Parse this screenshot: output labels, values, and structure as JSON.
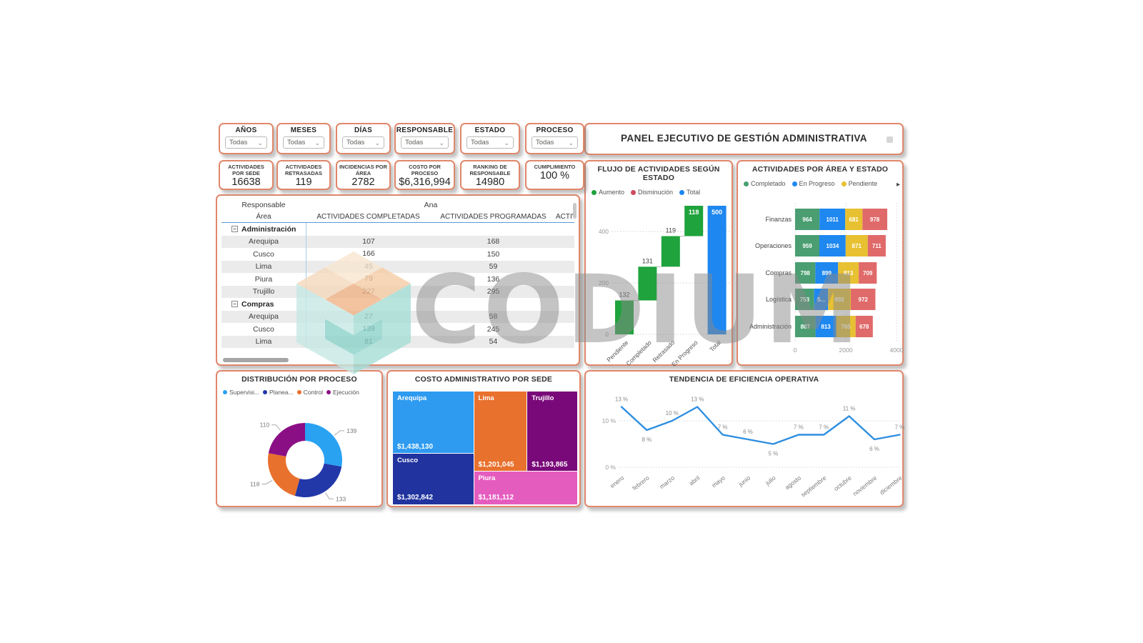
{
  "header": {
    "title": "PANEL EJECUTIVO DE GESTIÓN ADMINISTRATIVA"
  },
  "watermark": {
    "text": "CODIUM"
  },
  "slicers": [
    {
      "label": "AÑOS",
      "value": "Todas"
    },
    {
      "label": "MESES",
      "value": "Todas"
    },
    {
      "label": "DÍAS",
      "value": "Todas"
    },
    {
      "label": "RESPONSABLE",
      "value": "Todas"
    },
    {
      "label": "ESTADO",
      "value": "Todas"
    },
    {
      "label": "PROCESO",
      "value": "Todas"
    }
  ],
  "kpis": [
    {
      "label": "ACTIVIDADES POR SEDE",
      "value": "16638"
    },
    {
      "label": "ACTIVIDADES RETRASADAS",
      "value": "119"
    },
    {
      "label": "INCIDENCIAS POR ÁREA",
      "value": "2782"
    },
    {
      "label": "COSTO POR PROCESO",
      "value": "$6,316,994"
    },
    {
      "label": "RANKING DE RESPONSABLE",
      "value": "14980"
    },
    {
      "label": "CUMPLIMIENTO",
      "value": "100 %"
    }
  ],
  "matrix": {
    "row_header": "Responsable",
    "group_header": "Ana",
    "area_header": "Área",
    "columns": [
      "ACTIVIDADES COMPLETADAS",
      "ACTIVIDADES PROGRAMADAS",
      "ACTIV"
    ],
    "groups": [
      {
        "name": "Administración",
        "rows": [
          {
            "area": "Arequipa",
            "completadas": "107",
            "programadas": "168"
          },
          {
            "area": "Cusco",
            "completadas": "166",
            "programadas": "150"
          },
          {
            "area": "Lima",
            "completadas": "45",
            "programadas": "59"
          },
          {
            "area": "Piura",
            "completadas": "79",
            "programadas": "136"
          },
          {
            "area": "Trujillo",
            "completadas": "227",
            "programadas": "295"
          }
        ]
      },
      {
        "name": "Compras",
        "rows": [
          {
            "area": "Arequipa",
            "completadas": "27",
            "programadas": "58"
          },
          {
            "area": "Cusco",
            "completadas": "139",
            "programadas": "245"
          },
          {
            "area": "Lima",
            "completadas": "81",
            "programadas": "54"
          }
        ]
      }
    ]
  },
  "chart_data": [
    {
      "type": "waterfall",
      "title": "FLUJO DE ACTIVIDADES SEGÚN ESTADO",
      "legend": [
        {
          "label": "Aumento",
          "color": "#1FA33C"
        },
        {
          "label": "Disminución",
          "color": "#D04A5E"
        },
        {
          "label": "Total",
          "color": "#1E87F0"
        }
      ],
      "categories": [
        "Pendiente",
        "Completado",
        "Retrasado",
        "En Progreso",
        "Total"
      ],
      "values": [
        132,
        131,
        119,
        118,
        500
      ],
      "label_inside": [
        false,
        false,
        false,
        true,
        true
      ],
      "ylim": [
        0,
        500
      ],
      "yticks": [
        0,
        200,
        400
      ],
      "grid": "dotted"
    },
    {
      "type": "bar-stacked-h",
      "title": "ACTIVIDADES POR ÁREA Y ESTADO",
      "legend": [
        {
          "label": "Completado",
          "color": "#4A9E71"
        },
        {
          "label": "En Progreso",
          "color": "#1E87F0"
        },
        {
          "label": "Pendiente",
          "color": "#E7C131"
        }
      ],
      "legend_overflow": true,
      "categories": [
        "Finanzas",
        "Operaciones",
        "Compras",
        "Logística",
        "Administración"
      ],
      "series": [
        {
          "name": "Completado",
          "color": "#4A9E71",
          "values": [
            964,
            959,
            798,
            753,
            807
          ],
          "labels": [
            "964",
            "959",
            "798",
            "753",
            "807"
          ]
        },
        {
          "name": "En Progreso",
          "color": "#1E87F0",
          "values": [
            1011,
            1034,
            899,
            550,
            813
          ],
          "labels": [
            "1011",
            "1034",
            "899",
            "5...",
            "813"
          ]
        },
        {
          "name": "Pendiente",
          "color": "#E7C131",
          "values": [
            681,
            871,
            813,
            892,
            765
          ],
          "labels": [
            "681",
            "871",
            "813",
            "892",
            "765"
          ]
        },
        {
          "name": "",
          "color": "#E06A6A",
          "values": [
            978,
            711,
            709,
            972,
            678
          ],
          "labels": [
            "978",
            "711",
            "709",
            "972",
            "678"
          ]
        }
      ],
      "xlim": [
        0,
        4000
      ],
      "xticks": [
        0,
        2000,
        4000
      ]
    },
    {
      "type": "pie",
      "title": "DISTRIBUCIÓN POR PROCESO",
      "donut": true,
      "legend": [
        {
          "label": "Supervisi...",
          "color": "#29A2F2"
        },
        {
          "label": "Planea...",
          "color": "#2238A8"
        },
        {
          "label": "Control",
          "color": "#E8712D"
        },
        {
          "label": "Ejecución",
          "color": "#8A0F85"
        }
      ],
      "values": [
        139,
        133,
        118,
        110
      ],
      "labels": [
        "139",
        "133",
        "118",
        "110"
      ]
    },
    {
      "type": "treemap",
      "title": "COSTO ADMINISTRATIVO POR SEDE",
      "tiles": [
        {
          "name": "Arequipa",
          "value": "$1,438,130",
          "color": "#2E9BF0",
          "rect": [
            0,
            0,
            0.44,
            0.55
          ]
        },
        {
          "name": "Cusco",
          "value": "$1,302,842",
          "color": "#20339E",
          "rect": [
            0,
            0.55,
            0.44,
            0.45
          ]
        },
        {
          "name": "Lima",
          "value": "$1,201,045",
          "color": "#E8712D",
          "rect": [
            0.44,
            0,
            0.29,
            0.71
          ]
        },
        {
          "name": "Trujillo",
          "value": "$1,193,865",
          "color": "#790979",
          "rect": [
            0.73,
            0,
            0.27,
            0.71
          ]
        },
        {
          "name": "Piura",
          "value": "$1,181,112",
          "color": "#E55CBF",
          "rect": [
            0.44,
            0.71,
            0.56,
            0.29
          ]
        }
      ]
    },
    {
      "type": "line",
      "title": "TENDENCIA DE EFICIENCIA OPERATIVA",
      "x": [
        "enero",
        "febrero",
        "marzo",
        "abril",
        "mayo",
        "junio",
        "julio",
        "agosto",
        "septiembre",
        "octubre",
        "noviembre",
        "diciembre"
      ],
      "values": [
        13,
        8,
        10,
        13,
        7,
        6,
        5,
        7,
        7,
        11,
        6,
        7
      ],
      "labels": [
        "13 %",
        "8 %",
        "10 %",
        "13 %",
        "7 %",
        "6 %",
        "5 %",
        "7 %",
        "7 %",
        "11 %",
        "6 %",
        "7 %"
      ],
      "label_below": [
        1,
        6,
        10
      ],
      "yticks": [
        "10 %",
        "0 %"
      ],
      "ylim": [
        0,
        15
      ],
      "color": "#2E8EE0",
      "grid": "dotted"
    }
  ],
  "colors": {
    "accent_border": "#E0876B",
    "band": "#EBEBEB",
    "text_dark": "#252423",
    "text_gray": "#605E5C",
    "watermark": "#8C8C8C"
  }
}
